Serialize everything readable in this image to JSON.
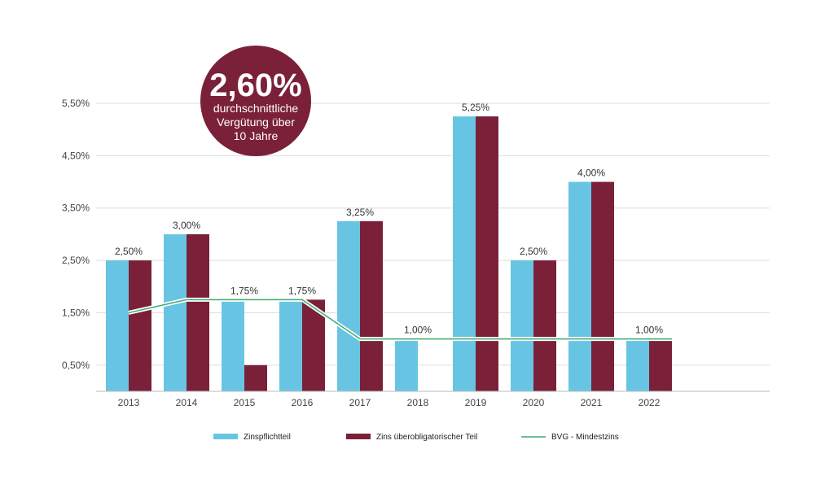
{
  "colors": {
    "zins_pflicht": "#67C5E3",
    "zins_ueber": "#7A2038",
    "mindestzins": "#3DAA6E",
    "grid": "#DDDDDD",
    "badge": "#7A2038"
  },
  "badge": {
    "value": "2,60%",
    "line1": "durchschnittliche",
    "line2": "Vergütung über",
    "line3": "10 Jahre"
  },
  "chart_data": {
    "type": "bar",
    "categories": [
      "2013",
      "2014",
      "2015",
      "2016",
      "2017",
      "2018",
      "2019",
      "2020",
      "2021",
      "2022"
    ],
    "series": [
      {
        "name": "Zinspflichtteil",
        "type": "bar",
        "values": [
          2.5,
          3.0,
          1.75,
          1.75,
          3.25,
          1.0,
          5.25,
          2.5,
          4.0,
          1.0
        ]
      },
      {
        "name": "Zins überobligatorischer Teil",
        "type": "bar",
        "values": [
          2.5,
          3.0,
          0.5,
          1.75,
          3.25,
          null,
          5.25,
          2.5,
          4.0,
          1.0
        ]
      },
      {
        "name": "BVG - Mindestzins",
        "type": "line",
        "values": [
          1.5,
          1.75,
          1.75,
          1.75,
          1.0,
          1.0,
          1.0,
          1.0,
          1.0,
          1.0
        ]
      }
    ],
    "data_labels": [
      "2,50%",
      "3,00%",
      "1,75%",
      "1,75%",
      "3,25%",
      "1,00%",
      "5,25%",
      "2,50%",
      "4,00%",
      "1,00%"
    ],
    "y_ticks": [
      {
        "value": 0.5,
        "label": "0,50%"
      },
      {
        "value": 1.5,
        "label": "1,50%"
      },
      {
        "value": 2.5,
        "label": "2,50%"
      },
      {
        "value": 3.5,
        "label": "3,50%"
      },
      {
        "value": 4.5,
        "label": "4,50%"
      },
      {
        "value": 5.5,
        "label": "5,50%"
      }
    ],
    "ylim": [
      0,
      5.5
    ],
    "grid": true,
    "legend_position": "bottom",
    "title": "",
    "xlabel": "",
    "ylabel": ""
  }
}
